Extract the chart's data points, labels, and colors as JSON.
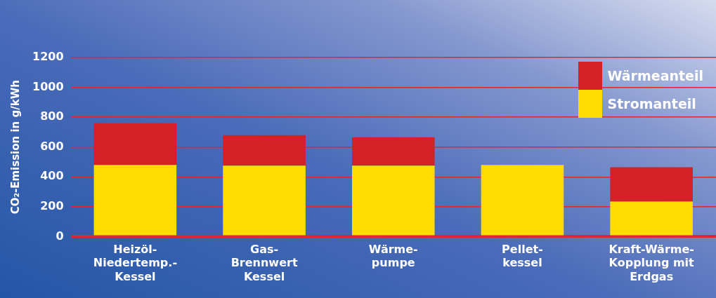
{
  "chart_data": {
    "type": "bar",
    "stacked": true,
    "ylabel": "CO₂-Emission in g/kWh",
    "categories": [
      "Heizöl-\nNiedertemp.-\nKessel",
      "Gas-\nBrennwert\nKessel",
      "Wärme-\npumpe",
      "Pellet-\nkessel",
      "Kraft-Wärme-\nKopplung mit\nErdgas"
    ],
    "series": [
      {
        "name": "Stromanteil",
        "color": "#ffdd00",
        "values": [
          480,
          475,
          475,
          480,
          235
        ]
      },
      {
        "name": "Wärmeanteil",
        "color": "#d42128",
        "values": [
          280,
          205,
          190,
          null,
          230
        ]
      }
    ],
    "ylim": [
      0,
      1200
    ],
    "yticks": [
      0,
      200,
      400,
      600,
      800,
      1000,
      1200
    ],
    "grid": "y",
    "legend": "top right"
  }
}
